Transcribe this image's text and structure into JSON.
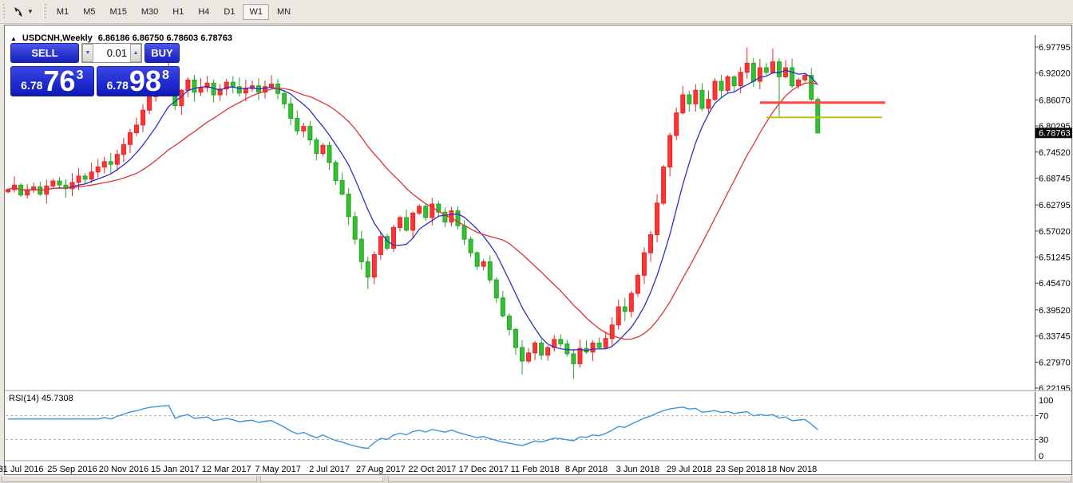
{
  "toolbar": {
    "timeframes": [
      "M1",
      "M5",
      "M15",
      "M30",
      "H1",
      "H4",
      "D1",
      "W1",
      "MN"
    ],
    "active_timeframe": "W1",
    "dropdown_caret_glyph": "▼"
  },
  "window": {
    "collapse_glyph": "▲",
    "symbol_title": "USDCNH,Weekly",
    "ohlc_text": "6.86186 6.86750 6.78603 6.78763"
  },
  "trade_panel": {
    "sell_label": "SELL",
    "buy_label": "BUY",
    "volume": "0.01",
    "spin_down_glyph": "▼",
    "spin_up_glyph": "▲",
    "sell_price": {
      "prefix": "6.78",
      "big": "76",
      "pip": "3"
    },
    "buy_price": {
      "prefix": "6.78",
      "big": "98",
      "pip": "8"
    }
  },
  "chart_data": {
    "type": "candlestick",
    "symbol": "USDCNH",
    "timeframe": "Weekly",
    "last_candle_ohlc": {
      "open": 6.86186,
      "high": 6.8675,
      "low": 6.78603,
      "close": 6.78763
    },
    "price_axis": {
      "ticks": [
        6.97795,
        6.9202,
        6.8607,
        6.80295,
        6.7452,
        6.68745,
        6.62795,
        6.5702,
        6.51245,
        6.4547,
        6.3952,
        6.33745,
        6.2797,
        6.22195
      ],
      "current_price": 6.78763,
      "current_price_text": "6.78763",
      "range": [
        6.22195,
        6.97795
      ]
    },
    "time_axis": {
      "labels": [
        "31 Jul 2016",
        "25 Sep 2016",
        "20 Nov 2016",
        "15 Jan 2017",
        "12 Mar 2017",
        "7 May 2017",
        "2 Jul 2017",
        "27 Aug 2017",
        "22 Oct 2017",
        "17 Dec 2017",
        "11 Feb 2018",
        "8 Apr 2018",
        "3 Jun 2018",
        "29 Jul 2018",
        "23 Sep 2018",
        "18 Nov 2018"
      ],
      "first_label_candle_index": 2,
      "candles_per_label": 8
    },
    "candles": {
      "closes": [
        6.662,
        6.672,
        6.65,
        6.661,
        6.668,
        6.652,
        6.67,
        6.681,
        6.672,
        6.664,
        6.678,
        6.692,
        6.685,
        6.701,
        6.712,
        6.724,
        6.718,
        6.74,
        6.762,
        6.788,
        6.805,
        6.838,
        6.868,
        6.885,
        6.905,
        6.92,
        6.848,
        6.882,
        6.905,
        6.878,
        6.888,
        6.898,
        6.872,
        6.885,
        6.9,
        6.89,
        6.876,
        6.886,
        6.892,
        6.878,
        6.89,
        6.896,
        6.875,
        6.852,
        6.82,
        6.792,
        6.802,
        6.772,
        6.742,
        6.76,
        6.722,
        6.682,
        6.652,
        6.602,
        6.552,
        6.502,
        6.468,
        6.518,
        6.558,
        6.532,
        6.578,
        6.6,
        6.572,
        6.61,
        6.625,
        6.6,
        6.63,
        6.612,
        6.59,
        6.615,
        6.582,
        6.552,
        6.522,
        6.492,
        6.502,
        6.462,
        6.422,
        6.382,
        6.352,
        6.312,
        6.282,
        6.3,
        6.322,
        6.295,
        6.312,
        6.33,
        6.32,
        6.298,
        6.276,
        6.31,
        6.302,
        6.322,
        6.312,
        6.332,
        6.362,
        6.402,
        6.392,
        6.432,
        6.472,
        6.522,
        6.562,
        6.632,
        6.712,
        6.782,
        6.832,
        6.872,
        6.852,
        6.882,
        6.842,
        6.862,
        6.902,
        6.882,
        6.912,
        6.892,
        6.922,
        6.942,
        6.902,
        6.932,
        6.922,
        6.945,
        6.912,
        6.932,
        6.892,
        6.905,
        6.915,
        6.862,
        6.78763
      ],
      "wick_overrides": {
        "25": {
          "high": 6.958
        },
        "56": {
          "low": 6.442
        },
        "80": {
          "low": 6.252
        },
        "88": {
          "low": 6.242
        },
        "115": {
          "high": 6.977
        },
        "119": {
          "high": 6.975
        },
        "120": {
          "low": 6.82
        },
        "126": {
          "open": 6.86186,
          "high": 6.8675,
          "low": 6.78603,
          "close": 6.78763
        }
      }
    },
    "moving_averages": [
      {
        "name": "fast",
        "period": 8,
        "color": "#2b2fc8"
      },
      {
        "name": "slow",
        "period": 21,
        "color": "#e03434"
      }
    ],
    "horizontal_lines": [
      {
        "name": "red-horizontal-line",
        "price": 6.8548,
        "from_candle": 117,
        "to_candle": 136.5,
        "color": "#ff4545",
        "width": 3
      },
      {
        "name": "yellow-horizontal-line",
        "price": 6.822,
        "from_candle": 118,
        "to_candle": 136.0,
        "color": "#bdbd1e",
        "width": 2
      }
    ],
    "rsi": {
      "label": "RSI(14)",
      "value": "45.7308",
      "period": 14,
      "levels": [
        100,
        70,
        30,
        0
      ],
      "dashed_levels": [
        70,
        30
      ],
      "color": "#3b93e0",
      "range": [
        0,
        100
      ]
    },
    "styles": {
      "bull_color": "#ff3434",
      "bull_stroke": "#e62525",
      "bear_color": "#33c133",
      "bear_stroke": "#27a427",
      "background": "#ffffff",
      "axis_color": "#4a4a4a",
      "text_color": "#000000",
      "tag_bg": "#0a0a0a",
      "tag_text": "#ffffff",
      "level_line_color": "#b0b0b0"
    }
  }
}
